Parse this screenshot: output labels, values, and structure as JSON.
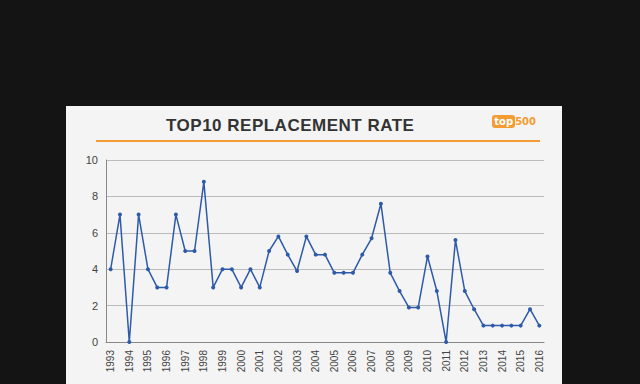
{
  "chart_data": {
    "type": "line",
    "title": "TOP10 REPLACEMENT RATE",
    "logo": [
      "top",
      "500"
    ],
    "categories": [
      "1993",
      null,
      "1994",
      null,
      "1995",
      null,
      "1996",
      null,
      "1997",
      null,
      "1998",
      null,
      "1999",
      null,
      "2000",
      null,
      "2001",
      null,
      "2002",
      null,
      "2003",
      null,
      "2004",
      null,
      "2005",
      null,
      "2006",
      null,
      "2007",
      null,
      "2008",
      null,
      "2009",
      null,
      "2010",
      null,
      "2011",
      null,
      "2012",
      null,
      "2013",
      null,
      "2014",
      null,
      "2015",
      null,
      "2016"
    ],
    "values": [
      4,
      7,
      0,
      7,
      4,
      3,
      3,
      7,
      5,
      5,
      8.8,
      3,
      4,
      4,
      3,
      4,
      3,
      5,
      5.8,
      4.8,
      3.9,
      5.8,
      4.8,
      4.8,
      3.8,
      3.8,
      3.8,
      4.8,
      5.7,
      7.6,
      3.8,
      2.8,
      1.9,
      1.9,
      4.7,
      2.8,
      0,
      5.6,
      2.8,
      1.8,
      0.9,
      0.9,
      0.9,
      0.9,
      0.9,
      1.8,
      0.9
    ],
    "color": "#2e5aa8",
    "marker": "circle",
    "ylim": [
      0,
      10
    ],
    "yticks": [
      0,
      2,
      4,
      6,
      8,
      10
    ],
    "grid": true
  }
}
